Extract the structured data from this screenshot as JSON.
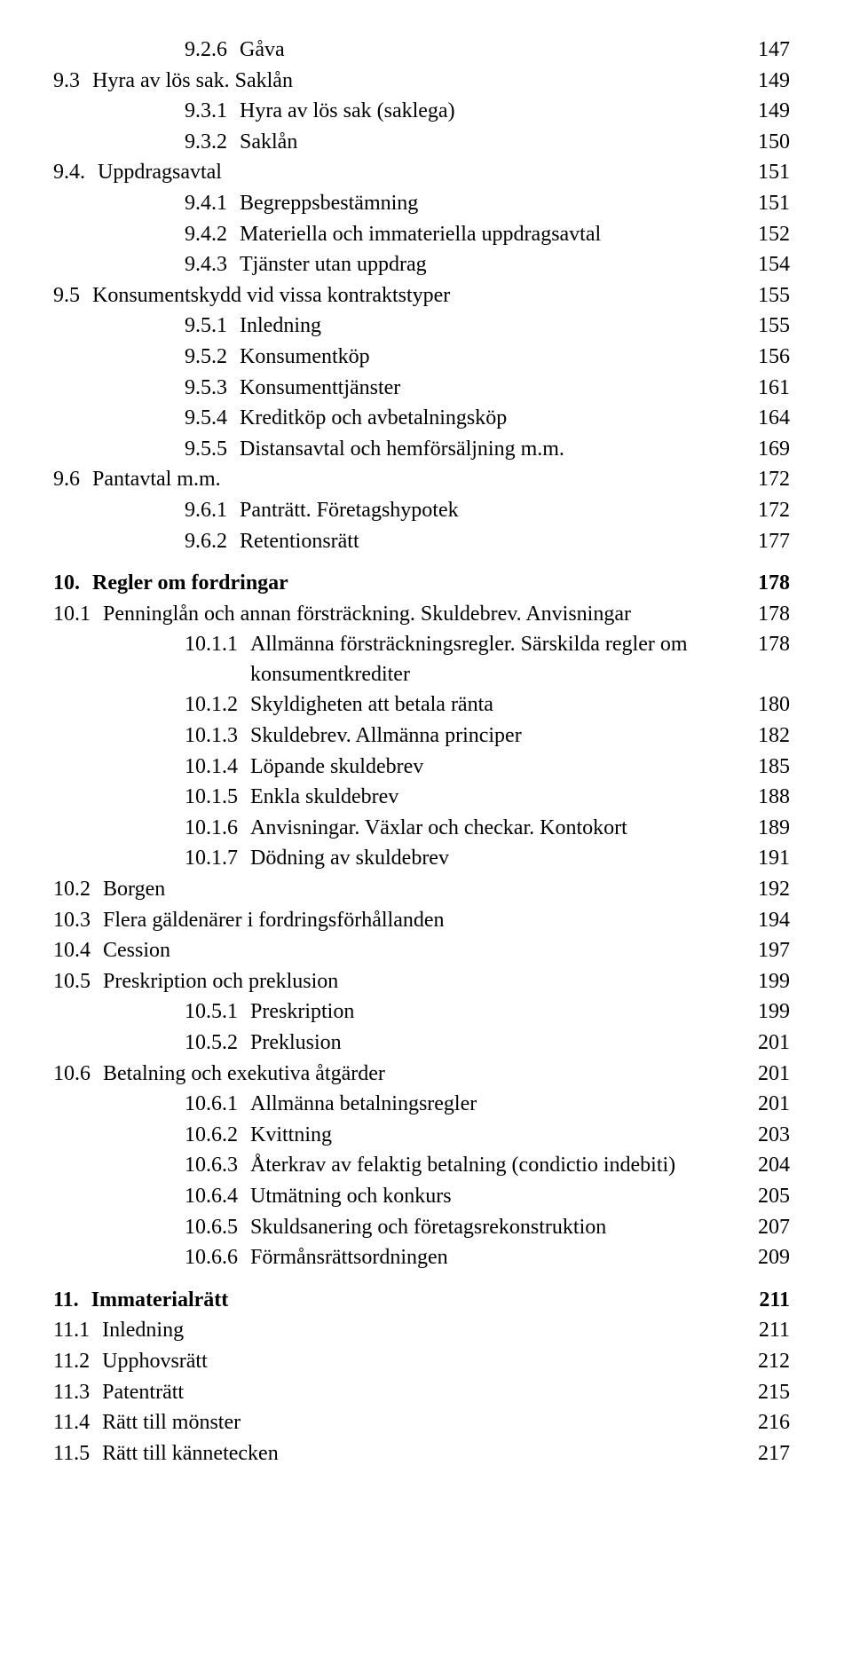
{
  "toc": [
    {
      "indent": 2,
      "num": "9.2.6",
      "title": "Gåva",
      "page": "147"
    },
    {
      "indent": 0,
      "num": "9.3",
      "title": "Hyra av lös sak. Saklån",
      "page": "149"
    },
    {
      "indent": 2,
      "num": "9.3.1",
      "title": "Hyra av lös sak (saklega)",
      "page": "149"
    },
    {
      "indent": 2,
      "num": "9.3.2",
      "title": "Saklån",
      "page": "150"
    },
    {
      "indent": 0,
      "num": "9.4.",
      "title": "Uppdragsavtal",
      "page": "151"
    },
    {
      "indent": 2,
      "num": "9.4.1",
      "title": "Begreppsbestämning",
      "page": "151"
    },
    {
      "indent": 2,
      "num": "9.4.2",
      "title": "Materiella och immateriella uppdragsavtal",
      "page": "152"
    },
    {
      "indent": 2,
      "num": "9.4.3",
      "title": "Tjänster utan uppdrag",
      "page": "154"
    },
    {
      "indent": 0,
      "num": "9.5",
      "title": "Konsumentskydd vid vissa kontraktstyper",
      "page": "155"
    },
    {
      "indent": 2,
      "num": "9.5.1",
      "title": "Inledning",
      "page": "155"
    },
    {
      "indent": 2,
      "num": "9.5.2",
      "title": "Konsumentköp",
      "page": "156"
    },
    {
      "indent": 2,
      "num": "9.5.3",
      "title": "Konsumenttjänster",
      "page": "161"
    },
    {
      "indent": 2,
      "num": "9.5.4",
      "title": "Kreditköp och avbetalningsköp",
      "page": "164"
    },
    {
      "indent": 2,
      "num": "9.5.5",
      "title": "Distansavtal och hemförsäljning m.m.",
      "page": "169"
    },
    {
      "indent": 0,
      "num": "9.6",
      "title": "Pantavtal m.m.",
      "page": "172"
    },
    {
      "indent": 2,
      "num": "9.6.1",
      "title": "Panträtt. Företagshypotek",
      "page": "172"
    },
    {
      "indent": 2,
      "num": "9.6.2",
      "title": "Retentionsrätt",
      "page": "177"
    },
    {
      "indent": 0,
      "num": "10.",
      "title": "Regler om fordringar",
      "page": "178",
      "bold": true,
      "gap": true
    },
    {
      "indent": 0,
      "num": "10.1",
      "title": "Penninglån och annan försträckning. Skuldebrev. Anvisningar",
      "page": "178"
    },
    {
      "indent": 2,
      "num": "10.1.1",
      "title": "Allmänna försträckningsregler. Särskilda regler om konsumentkrediter",
      "page": "178"
    },
    {
      "indent": 2,
      "num": "10.1.2",
      "title": "Skyldigheten att betala ränta",
      "page": "180"
    },
    {
      "indent": 2,
      "num": "10.1.3",
      "title": "Skuldebrev. Allmänna principer",
      "page": "182"
    },
    {
      "indent": 2,
      "num": "10.1.4",
      "title": "Löpande skuldebrev",
      "page": "185"
    },
    {
      "indent": 2,
      "num": "10.1.5",
      "title": "Enkla skuldebrev",
      "page": "188"
    },
    {
      "indent": 2,
      "num": "10.1.6",
      "title": "Anvisningar. Växlar och checkar. Kontokort",
      "page": "189"
    },
    {
      "indent": 2,
      "num": "10.1.7",
      "title": "Dödning av skuldebrev",
      "page": "191"
    },
    {
      "indent": 0,
      "num": "10.2",
      "title": "Borgen",
      "page": "192"
    },
    {
      "indent": 0,
      "num": "10.3",
      "title": "Flera gäldenärer i fordringsförhållanden",
      "page": "194"
    },
    {
      "indent": 0,
      "num": "10.4",
      "title": "Cession",
      "page": "197"
    },
    {
      "indent": 0,
      "num": "10.5",
      "title": "Preskription och preklusion",
      "page": "199"
    },
    {
      "indent": 2,
      "num": "10.5.1",
      "title": "Preskription",
      "page": "199"
    },
    {
      "indent": 2,
      "num": "10.5.2",
      "title": "Preklusion",
      "page": "201"
    },
    {
      "indent": 0,
      "num": "10.6",
      "title": "Betalning och exekutiva åtgärder",
      "page": "201"
    },
    {
      "indent": 2,
      "num": "10.6.1",
      "title": "Allmänna betalningsregler",
      "page": "201"
    },
    {
      "indent": 2,
      "num": "10.6.2",
      "title": "Kvittning",
      "page": "203"
    },
    {
      "indent": 2,
      "num": "10.6.3",
      "title": "Återkrav av felaktig betalning (condictio indebiti)",
      "page": "204"
    },
    {
      "indent": 2,
      "num": "10.6.4",
      "title": "Utmätning och konkurs",
      "page": "205"
    },
    {
      "indent": 2,
      "num": "10.6.5",
      "title": "Skuldsanering och företagsrekonstruktion",
      "page": "207"
    },
    {
      "indent": 2,
      "num": "10.6.6",
      "title": "Förmånsrättsordningen",
      "page": "209"
    },
    {
      "indent": 0,
      "num": "11.",
      "title": "Immaterialrätt",
      "page": "211",
      "bold": true,
      "gap": true
    },
    {
      "indent": 0,
      "num": "11.1",
      "title": "Inledning",
      "page": "211"
    },
    {
      "indent": 0,
      "num": "11.2",
      "title": "Upphovsrätt",
      "page": "212"
    },
    {
      "indent": 0,
      "num": "11.3",
      "title": "Patenträtt",
      "page": "215"
    },
    {
      "indent": 0,
      "num": "11.4",
      "title": "Rätt till mönster",
      "page": "216"
    },
    {
      "indent": 0,
      "num": "11.5",
      "title": "Rätt till kännetecken",
      "page": "217"
    }
  ]
}
